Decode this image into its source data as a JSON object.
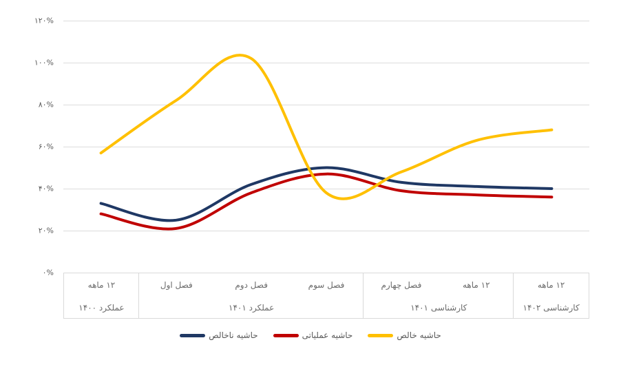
{
  "chart_data": {
    "type": "line",
    "rtl": true,
    "grid": true,
    "line_smoothing": true,
    "y_axis": {
      "ticks": [
        {
          "label": "۱۲۰%",
          "value": 120
        },
        {
          "label": "۱۰۰%",
          "value": 100
        },
        {
          "label": "۸۰%",
          "value": 80
        },
        {
          "label": "۶۰%",
          "value": 60
        },
        {
          "label": "۴۰%",
          "value": 40
        },
        {
          "label": "۲۰%",
          "value": 20
        },
        {
          "label": "۰%",
          "value": 0
        }
      ],
      "ylim": [
        0,
        130
      ],
      "unit": "%"
    },
    "categories": [
      "۱۲ ماهه",
      "فصل اول",
      "فصل دوم",
      "فصل سوم",
      "فصل چهارم",
      "۱۲ ماهه",
      "۱۲ ماهه"
    ],
    "category_groups": [
      {
        "label": "عملکرد ۱۴۰۰",
        "span": 1
      },
      {
        "label": "عملکرد ۱۴۰۱",
        "span": 3
      },
      {
        "label": "کارشناسی ۱۴۰۱",
        "span": 2
      },
      {
        "label": "کارشناسی ۱۴۰۲",
        "span": 1
      }
    ],
    "series": [
      {
        "name": "حاشیه ناخالص",
        "key": "gross-margin",
        "color": "#1F3864",
        "values": [
          33,
          25,
          42,
          50,
          43,
          41,
          40
        ]
      },
      {
        "name": "حاشیه عملیاتی",
        "key": "operating-margin",
        "color": "#C00000",
        "values": [
          28,
          21,
          38,
          47,
          39,
          37,
          36
        ]
      },
      {
        "name": "حاشیه خالص",
        "key": "net-margin",
        "color": "#FFC000",
        "values": [
          57,
          82,
          102,
          38,
          48,
          63,
          68
        ]
      }
    ],
    "legend": {
      "position": "bottom",
      "items": [
        {
          "label": "حاشیه ناخالص",
          "color": "#1F3864"
        },
        {
          "label": "حاشیه عملیاتی",
          "color": "#C00000"
        },
        {
          "label": "حاشیه خالص",
          "color": "#FFC000"
        }
      ]
    },
    "colors": {
      "gridline": "#dcdcdc",
      "table_border": "#d9d9d9",
      "axis_text": "#595959",
      "category_text": "#6b6b6b"
    }
  }
}
